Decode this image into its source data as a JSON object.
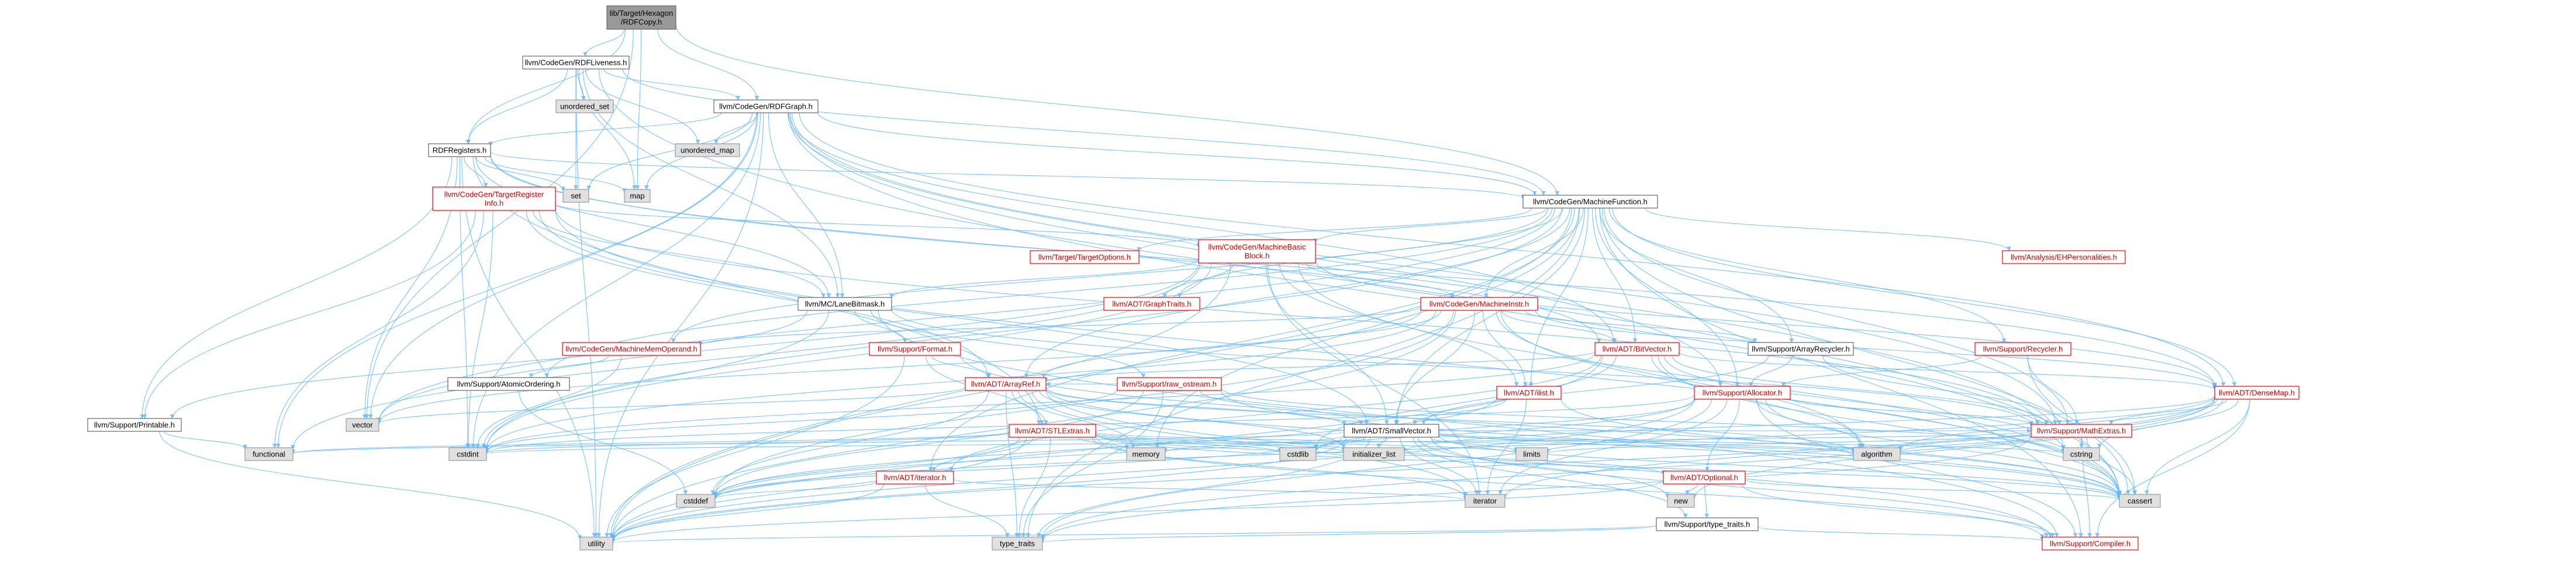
{
  "diagram": {
    "type": "include-dependency-graph",
    "nodes": [
      {
        "id": "root",
        "label": "lib/Target/Hexagon\n/RDFCopy.h",
        "kind": "root"
      },
      {
        "id": "rdfliveness",
        "label": "llvm/CodeGen/RDFLiveness.h",
        "kind": "normal"
      },
      {
        "id": "unordered_set",
        "label": "unordered_set",
        "kind": "gray"
      },
      {
        "id": "rdfgraph",
        "label": "llvm/CodeGen/RDFGraph.h",
        "kind": "normal"
      },
      {
        "id": "unordered_map",
        "label": "unordered_map",
        "kind": "gray"
      },
      {
        "id": "rdfregisters",
        "label": "RDFRegisters.h",
        "kind": "normal"
      },
      {
        "id": "set",
        "label": "set",
        "kind": "gray"
      },
      {
        "id": "map",
        "label": "map",
        "kind": "gray"
      },
      {
        "id": "tri",
        "label": "llvm/CodeGen/TargetRegister\nInfo.h",
        "kind": "red"
      },
      {
        "id": "mf",
        "label": "llvm/CodeGen/MachineFunction.h",
        "kind": "normal"
      },
      {
        "id": "targetoptions",
        "label": "llvm/Target/TargetOptions.h",
        "kind": "red"
      },
      {
        "id": "mbb",
        "label": "llvm/CodeGen/MachineBasic\nBlock.h",
        "kind": "red"
      },
      {
        "id": "ehpers",
        "label": "llvm/Analysis/EHPersonalities.h",
        "kind": "red"
      },
      {
        "id": "graphtraits",
        "label": "llvm/ADT/GraphTraits.h",
        "kind": "red"
      },
      {
        "id": "lanebitmask",
        "label": "llvm/MC/LaneBitmask.h",
        "kind": "normal"
      },
      {
        "id": "machineinstr",
        "label": "llvm/CodeGen/MachineInstr.h",
        "kind": "red"
      },
      {
        "id": "mmo",
        "label": "llvm/CodeGen/MachineMemOperand.h",
        "kind": "red"
      },
      {
        "id": "format",
        "label": "llvm/Support/Format.h",
        "kind": "red"
      },
      {
        "id": "bitvector",
        "label": "llvm/ADT/BitVector.h",
        "kind": "red"
      },
      {
        "id": "arrayrecycler",
        "label": "llvm/Support/ArrayRecycler.h",
        "kind": "normal"
      },
      {
        "id": "recycler",
        "label": "llvm/Support/Recycler.h",
        "kind": "red"
      },
      {
        "id": "atomicordering",
        "label": "llvm/Support/AtomicOrdering.h",
        "kind": "normal"
      },
      {
        "id": "arrayref",
        "label": "llvm/ADT/ArrayRef.h",
        "kind": "red"
      },
      {
        "id": "rawostream",
        "label": "llvm/Support/raw_ostream.h",
        "kind": "red"
      },
      {
        "id": "ilist",
        "label": "llvm/ADT/ilist.h",
        "kind": "red"
      },
      {
        "id": "allocator",
        "label": "llvm/Support/Allocator.h",
        "kind": "red"
      },
      {
        "id": "densemap",
        "label": "llvm/ADT/DenseMap.h",
        "kind": "red"
      },
      {
        "id": "printable",
        "label": "llvm/Support/Printable.h",
        "kind": "normal"
      },
      {
        "id": "vector",
        "label": "vector",
        "kind": "gray"
      },
      {
        "id": "stlextras",
        "label": "llvm/ADT/STLExtras.h",
        "kind": "red"
      },
      {
        "id": "smallvector",
        "label": "llvm/ADT/SmallVector.h",
        "kind": "normal"
      },
      {
        "id": "mathextras",
        "label": "llvm/Support/MathExtras.h",
        "kind": "red"
      },
      {
        "id": "functional",
        "label": "functional",
        "kind": "gray"
      },
      {
        "id": "cstdint",
        "label": "cstdint",
        "kind": "gray"
      },
      {
        "id": "memory",
        "label": "memory",
        "kind": "gray"
      },
      {
        "id": "cstdlib",
        "label": "cstdlib",
        "kind": "gray"
      },
      {
        "id": "initializer_list",
        "label": "initializer_list",
        "kind": "gray"
      },
      {
        "id": "limits",
        "label": "limits",
        "kind": "gray"
      },
      {
        "id": "algorithm",
        "label": "algorithm",
        "kind": "gray"
      },
      {
        "id": "cstring",
        "label": "cstring",
        "kind": "gray"
      },
      {
        "id": "iteratorh",
        "label": "llvm/ADT/iterator.h",
        "kind": "red"
      },
      {
        "id": "optional",
        "label": "llvm/ADT/Optional.h",
        "kind": "red"
      },
      {
        "id": "cstddef",
        "label": "cstddef",
        "kind": "gray"
      },
      {
        "id": "iterator",
        "label": "iterator",
        "kind": "gray"
      },
      {
        "id": "new",
        "label": "new",
        "kind": "gray"
      },
      {
        "id": "cassert",
        "label": "cassert",
        "kind": "gray"
      },
      {
        "id": "typetraitsh",
        "label": "llvm/Support/type_traits.h",
        "kind": "normal"
      },
      {
        "id": "utility",
        "label": "utility",
        "kind": "gray"
      },
      {
        "id": "type_traits",
        "label": "type_traits",
        "kind": "gray"
      },
      {
        "id": "compiler",
        "label": "llvm/Support/Compiler.h",
        "kind": "red"
      }
    ],
    "edges": [
      [
        "root",
        "rdfliveness"
      ],
      [
        "root",
        "rdfgraph"
      ],
      [
        "root",
        "rdfregisters"
      ],
      [
        "root",
        "map"
      ],
      [
        "root",
        "vector"
      ],
      [
        "root",
        "mf"
      ],
      [
        "rdfliveness",
        "unordered_set"
      ],
      [
        "rdfliveness",
        "rdfgraph"
      ],
      [
        "rdfliveness",
        "rdfregisters"
      ],
      [
        "rdfliveness",
        "set"
      ],
      [
        "rdfliveness",
        "map"
      ],
      [
        "rdfliveness",
        "unordered_map"
      ],
      [
        "rdfliveness",
        "utility"
      ],
      [
        "rdfliveness",
        "lanebitmask"
      ],
      [
        "rdfliveness",
        "mf"
      ],
      [
        "rdfliveness",
        "cassert"
      ],
      [
        "rdfgraph",
        "unordered_map"
      ],
      [
        "rdfgraph",
        "rdfregisters"
      ],
      [
        "rdfgraph",
        "set"
      ],
      [
        "rdfgraph",
        "map"
      ],
      [
        "rdfgraph",
        "lanebitmask"
      ],
      [
        "rdfgraph",
        "mf"
      ],
      [
        "rdfgraph",
        "bitvector"
      ],
      [
        "rdfgraph",
        "allocator"
      ],
      [
        "rdfgraph",
        "densemap"
      ],
      [
        "rdfgraph",
        "mathextras"
      ],
      [
        "rdfgraph",
        "cstdint"
      ],
      [
        "rdfgraph",
        "cassert"
      ],
      [
        "rdfgraph",
        "vector"
      ],
      [
        "rdfgraph",
        "utility"
      ],
      [
        "rdfgraph",
        "cstring"
      ],
      [
        "rdfgraph",
        "functional"
      ],
      [
        "rdfregisters",
        "set"
      ],
      [
        "rdfregisters",
        "map"
      ],
      [
        "rdfregisters",
        "tri"
      ],
      [
        "rdfregisters",
        "mf"
      ],
      [
        "rdfregisters",
        "bitvector"
      ],
      [
        "rdfregisters",
        "lanebitmask"
      ],
      [
        "rdfregisters",
        "printable"
      ],
      [
        "rdfregisters",
        "stlextras"
      ],
      [
        "rdfregisters",
        "cstdint"
      ],
      [
        "rdfregisters",
        "vector"
      ],
      [
        "rdfregisters",
        "utility"
      ],
      [
        "rdfregisters",
        "densemap"
      ],
      [
        "tri",
        "mbb"
      ],
      [
        "tri",
        "lanebitmask"
      ],
      [
        "tri",
        "printable"
      ],
      [
        "tri",
        "arrayref"
      ],
      [
        "tri",
        "smallvector"
      ],
      [
        "tri",
        "functional"
      ],
      [
        "tri",
        "cstdint"
      ],
      [
        "tri",
        "mathextras"
      ],
      [
        "tri",
        "cassert"
      ],
      [
        "mf",
        "targetoptions"
      ],
      [
        "mf",
        "mbb"
      ],
      [
        "mf",
        "ehpers"
      ],
      [
        "mf",
        "graphtraits"
      ],
      [
        "mf",
        "machineinstr"
      ],
      [
        "mf",
        "mmo"
      ],
      [
        "mf",
        "bitvector"
      ],
      [
        "mf",
        "arrayrecycler"
      ],
      [
        "mf",
        "recycler"
      ],
      [
        "mf",
        "atomicordering"
      ],
      [
        "mf",
        "arrayref"
      ],
      [
        "mf",
        "ilist"
      ],
      [
        "mf",
        "allocator"
      ],
      [
        "mf",
        "densemap"
      ],
      [
        "mf",
        "smallvector"
      ],
      [
        "mf",
        "iteratorh"
      ],
      [
        "mf",
        "memory"
      ],
      [
        "mf",
        "utility"
      ],
      [
        "mf",
        "vector"
      ],
      [
        "mf",
        "cassert"
      ],
      [
        "mf",
        "cstdint"
      ],
      [
        "mf",
        "compiler"
      ],
      [
        "mf",
        "mathextras"
      ],
      [
        "mf",
        "type_traits"
      ],
      [
        "mbb",
        "graphtraits"
      ],
      [
        "mbb",
        "lanebitmask"
      ],
      [
        "mbb",
        "machineinstr"
      ],
      [
        "mbb",
        "ilist"
      ],
      [
        "mbb",
        "iterator"
      ],
      [
        "mbb",
        "functional"
      ],
      [
        "mbb",
        "cassert"
      ],
      [
        "mbb",
        "cstdint"
      ],
      [
        "mbb",
        "vector"
      ],
      [
        "mbb",
        "densemap"
      ],
      [
        "mbb",
        "smallvector"
      ],
      [
        "mbb",
        "utility"
      ],
      [
        "lanebitmask",
        "format"
      ],
      [
        "lanebitmask",
        "mathextras"
      ],
      [
        "lanebitmask",
        "printable"
      ],
      [
        "lanebitmask",
        "cstdint"
      ],
      [
        "lanebitmask",
        "rawostream"
      ],
      [
        "lanebitmask",
        "compiler"
      ],
      [
        "machineinstr",
        "mmo"
      ],
      [
        "machineinstr",
        "arrayrecycler"
      ],
      [
        "machineinstr",
        "arrayref"
      ],
      [
        "machineinstr",
        "ilist"
      ],
      [
        "machineinstr",
        "densemap"
      ],
      [
        "machineinstr",
        "smallvector"
      ],
      [
        "machineinstr",
        "bitvector"
      ],
      [
        "machineinstr",
        "algorithm"
      ],
      [
        "machineinstr",
        "cassert"
      ],
      [
        "machineinstr",
        "cstdint"
      ],
      [
        "machineinstr",
        "cstddef"
      ],
      [
        "machineinstr",
        "utility"
      ],
      [
        "machineinstr",
        "vector"
      ],
      [
        "mmo",
        "atomicordering"
      ],
      [
        "mmo",
        "cstdint"
      ],
      [
        "format",
        "arrayref"
      ],
      [
        "format",
        "stlextras"
      ],
      [
        "format",
        "cassert"
      ],
      [
        "format",
        "cstdio"
      ],
      [
        "format",
        "tuple"
      ],
      [
        "format",
        "utility"
      ],
      [
        "bitvector",
        "arrayref"
      ],
      [
        "bitvector",
        "densemap"
      ],
      [
        "bitvector",
        "mathextras"
      ],
      [
        "bitvector",
        "algorithm"
      ],
      [
        "bitvector",
        "cassert"
      ],
      [
        "bitvector",
        "climits"
      ],
      [
        "bitvector",
        "cstdint"
      ],
      [
        "bitvector",
        "cstdlib"
      ],
      [
        "bitvector",
        "cstring"
      ],
      [
        "bitvector",
        "utility"
      ],
      [
        "bitvector",
        "iteratorh"
      ],
      [
        "arrayrecycler",
        "smallvector"
      ],
      [
        "arrayrecycler",
        "allocator"
      ],
      [
        "arrayrecycler",
        "mathextras"
      ],
      [
        "recycler",
        "allocator"
      ],
      [
        "recycler",
        "mathextras"
      ],
      [
        "recycler",
        "cassert"
      ],
      [
        "atomicordering",
        "cstddef"
      ],
      [
        "arrayref",
        "smallvector"
      ],
      [
        "arrayref",
        "stlextras"
      ],
      [
        "arrayref",
        "compiler"
      ],
      [
        "arrayref",
        "algorithm"
      ],
      [
        "arrayref",
        "array"
      ],
      [
        "arrayref",
        "cassert"
      ],
      [
        "arrayref",
        "cstddef"
      ],
      [
        "arrayref",
        "initializer_list"
      ],
      [
        "arrayref",
        "iterator"
      ],
      [
        "arrayref",
        "memory"
      ],
      [
        "arrayref",
        "type_traits"
      ],
      [
        "arrayref",
        "vector"
      ],
      [
        "rawostream",
        "arrayref"
      ],
      [
        "rawostream",
        "smallvector"
      ],
      [
        "rawostream",
        "cassert"
      ],
      [
        "rawostream",
        "cstddef"
      ],
      [
        "rawostream",
        "cstdint"
      ],
      [
        "rawostream",
        "cstring"
      ],
      [
        "rawostream",
        "string"
      ],
      [
        "rawostream",
        "type_traits"
      ],
      [
        "ilist",
        "iterator"
      ],
      [
        "ilist",
        "cassert"
      ],
      [
        "ilist",
        "cstddef"
      ],
      [
        "ilist",
        "smallvector"
      ],
      [
        "allocator",
        "optional"
      ],
      [
        "allocator",
        "mathextras"
      ],
      [
        "allocator",
        "compiler"
      ],
      [
        "allocator",
        "algorithm"
      ],
      [
        "allocator",
        "cassert"
      ],
      [
        "allocator",
        "cstddef"
      ],
      [
        "allocator",
        "cstdint"
      ],
      [
        "allocator",
        "cstdlib"
      ],
      [
        "allocator",
        "iterator"
      ],
      [
        "allocator",
        "type_traits"
      ],
      [
        "allocator",
        "utility"
      ],
      [
        "densemap",
        "mathextras"
      ],
      [
        "densemap",
        "compiler"
      ],
      [
        "densemap",
        "algorithm"
      ],
      [
        "densemap",
        "cassert"
      ],
      [
        "densemap",
        "cstddef"
      ],
      [
        "densemap",
        "cstring"
      ],
      [
        "densemap",
        "initializer_list"
      ],
      [
        "densemap",
        "iterator"
      ],
      [
        "densemap",
        "new"
      ],
      [
        "densemap",
        "type_traits"
      ],
      [
        "densemap",
        "utility"
      ],
      [
        "printable",
        "functional"
      ],
      [
        "printable",
        "utility"
      ],
      [
        "stlextras",
        "iteratorh"
      ],
      [
        "stlextras",
        "optional"
      ],
      [
        "stlextras",
        "compiler"
      ],
      [
        "stlextras",
        "algorithm"
      ],
      [
        "stlextras",
        "cassert"
      ],
      [
        "stlextras",
        "cstddef"
      ],
      [
        "stlextras",
        "cstdint"
      ],
      [
        "stlextras",
        "cstdlib"
      ],
      [
        "stlextras",
        "functional"
      ],
      [
        "stlextras",
        "initializer_list"
      ],
      [
        "stlextras",
        "iterator"
      ],
      [
        "stlextras",
        "limits"
      ],
      [
        "stlextras",
        "memory"
      ],
      [
        "stlextras",
        "tuple"
      ],
      [
        "stlextras",
        "type_traits"
      ],
      [
        "stlextras",
        "utility"
      ],
      [
        "smallvector",
        "mathextras"
      ],
      [
        "smallvector",
        "compiler"
      ],
      [
        "smallvector",
        "typetraitsh"
      ],
      [
        "smallvector",
        "algorithm"
      ],
      [
        "smallvector",
        "cassert"
      ],
      [
        "smallvector",
        "cstddef"
      ],
      [
        "smallvector",
        "cstdlib"
      ],
      [
        "smallvector",
        "cstring"
      ],
      [
        "smallvector",
        "initializer_list"
      ],
      [
        "smallvector",
        "iterator"
      ],
      [
        "smallvector",
        "limits"
      ],
      [
        "smallvector",
        "memory"
      ],
      [
        "smallvector",
        "new"
      ],
      [
        "smallvector",
        "type_traits"
      ],
      [
        "smallvector",
        "utility"
      ],
      [
        "smallvector",
        "functional"
      ],
      [
        "mathextras",
        "compiler"
      ],
      [
        "mathextras",
        "cassert"
      ],
      [
        "mathextras",
        "climits"
      ],
      [
        "mathextras",
        "cstring"
      ],
      [
        "mathextras",
        "limits"
      ],
      [
        "mathextras",
        "type_traits"
      ],
      [
        "mathextras",
        "algorithm"
      ],
      [
        "mathextras",
        "cstdint"
      ],
      [
        "iteratorh",
        "cstddef"
      ],
      [
        "iteratorh",
        "iterator"
      ],
      [
        "iteratorh",
        "type_traits"
      ],
      [
        "iteratorh",
        "utility"
      ],
      [
        "optional",
        "compiler"
      ],
      [
        "optional",
        "typetraitsh"
      ],
      [
        "optional",
        "cassert"
      ],
      [
        "optional",
        "new"
      ],
      [
        "optional",
        "utility"
      ],
      [
        "typetraitsh",
        "type_traits"
      ],
      [
        "typetraitsh",
        "utility"
      ],
      [
        "typetraitsh",
        "compiler"
      ]
    ]
  }
}
